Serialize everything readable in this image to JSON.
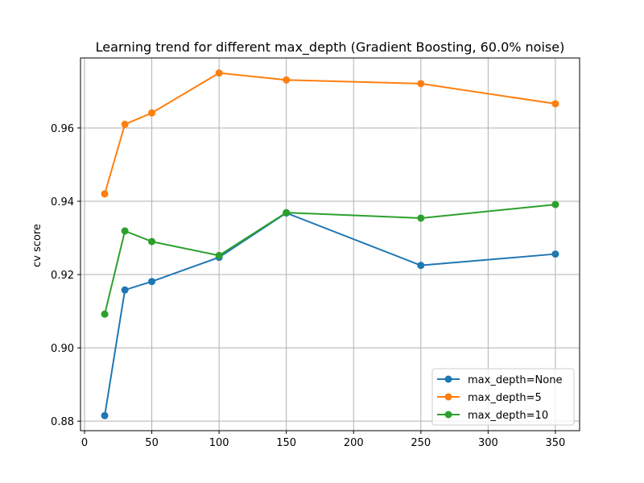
{
  "chart_data": {
    "type": "line",
    "title": "Learning trend for different max_depth (Gradient Boosting, 60.0% noise)",
    "xlabel": "",
    "ylabel": "cv score",
    "xlim": [
      -3,
      368
    ],
    "ylim": [
      0.8774,
      0.9791
    ],
    "xticks": [
      0,
      50,
      100,
      150,
      200,
      250,
      300,
      350
    ],
    "yticks": [
      0.88,
      0.9,
      0.92,
      0.94,
      0.96
    ],
    "ytick_labels": [
      "0.88",
      "0.90",
      "0.92",
      "0.94",
      "0.96"
    ],
    "grid": true,
    "legend_position": "lower right",
    "x": [
      15,
      30,
      50,
      100,
      150,
      250,
      350
    ],
    "series": [
      {
        "name": "max_depth=None",
        "color": "#1f77b4",
        "values": [
          0.8815,
          0.9158,
          0.9181,
          0.9247,
          0.9368,
          0.9225,
          0.9256
        ]
      },
      {
        "name": "max_depth=5",
        "color": "#ff7f0e",
        "values": [
          0.942,
          0.961,
          0.9641,
          0.975,
          0.9731,
          0.9721,
          0.9666
        ]
      },
      {
        "name": "max_depth=10",
        "color": "#2ca02c",
        "values": [
          0.9092,
          0.9319,
          0.929,
          0.9252,
          0.9369,
          0.9354,
          0.9391
        ]
      }
    ]
  }
}
